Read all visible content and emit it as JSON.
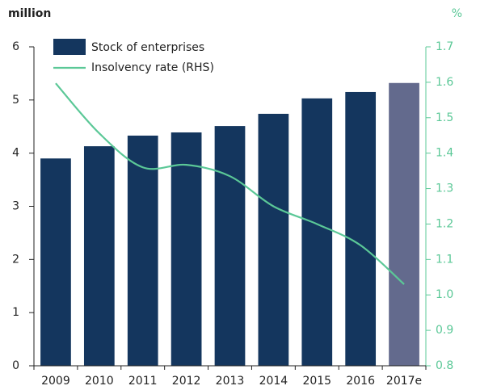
{
  "chart_data": {
    "type": "bar-line",
    "y_label": "million",
    "y2_label": "%",
    "categories": [
      "2009",
      "2010",
      "2011",
      "2012",
      "2013",
      "2014",
      "2015",
      "2016",
      "2017e"
    ],
    "series": [
      {
        "name": "Stock of enterprises",
        "color": "#14365e",
        "colors": [
          "#14365e",
          "#14365e",
          "#14365e",
          "#14365e",
          "#14365e",
          "#14365e",
          "#14365e",
          "#14365e",
          "#636a8d"
        ],
        "values": [
          3.9,
          4.13,
          4.33,
          4.39,
          4.51,
          4.74,
          5.03,
          5.15,
          5.32
        ]
      },
      {
        "name": "Insolvency rate (RHS)",
        "color": "#5bc897",
        "axis": "y2",
        "values": [
          1.597,
          1.456,
          1.36,
          1.367,
          1.335,
          1.25,
          1.2,
          1.14,
          1.03
        ]
      }
    ],
    "ylim": [
      0,
      6
    ],
    "yticks": [
      0,
      1,
      2,
      3,
      4,
      5,
      6
    ],
    "y2lim": [
      0.8,
      1.7
    ],
    "y2ticks": [
      0.8,
      0.9,
      {
        "value": 1,
        "label": "1.0"
      },
      1.1,
      1.2,
      1.3,
      1.4,
      1.5,
      1.6,
      1.7
    ]
  }
}
